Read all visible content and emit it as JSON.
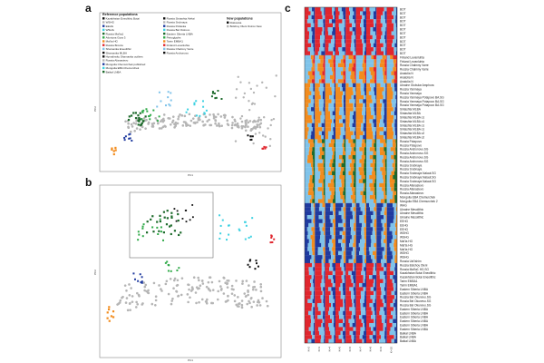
{
  "panels": {
    "a": "a",
    "b": "b",
    "c": "c"
  },
  "legend": {
    "ref_title": "Reference populations",
    "new_title": "New populations",
    "col1": [
      "Kazakhstan Eneolithic Botai",
      "WSHG",
      "EEHG",
      "WSHG",
      "Russia Mal'ta1",
      "Afontova Gora 3",
      "Mal'ta HG",
      "Russia Bronze",
      "Shamanka Eneolithic",
      "Shamanka MLBA",
      "Hymalinsky Shamanka outliers",
      "Russia Afanasievo",
      "Mongolia Chemurchek published",
      "Mongolia EBA Chemurchek",
      "Baikal LNBA"
    ],
    "col2": [
      "Russia Sintashta Aleksi",
      "Russia Srubnaya",
      "Russia Poltavka",
      "Russia Bel Ostrovo",
      "Eastern Siberia LNBA",
      "Petroglyphs",
      "Tarim EMBA1",
      "Finland Levanluhta",
      "Russia Chalmny Varre",
      "Russia Andronovo"
    ],
    "col3": [
      "Rotkonka",
      "Bolshoy Oleni Ostrov New"
    ]
  },
  "axes": {
    "pc1": "PC1",
    "pc2": "PC2"
  },
  "bar_labels": [
    "BOT",
    "BOT",
    "BOT",
    "BOT",
    "BOT",
    "BOT",
    "BOT",
    "BOT",
    "BOT",
    "BOT",
    "BOT",
    "BOT",
    "Finland Levanluhta",
    "Finland Levanluhta",
    "Russia Chalmny Varre",
    "Russia Chalmny Varre",
    "Anatolia N",
    "Anatolia N",
    "Anatolia N",
    "Ukraine Globular Amphora",
    "Russia Yamnaya",
    "Russia Yamnaya",
    "Russia Yamnaya Potapovo BA.SG",
    "Russia Yamnaya Potapovo BA.SG",
    "Russia Yamnaya Potapovo BA.SG",
    "Sintashta MLBA",
    "Sintashta MLBA",
    "Sintashta MLBA o1",
    "Sintashta MLBA o1",
    "Sintashta MLBA o1",
    "Sintashta MLBA o1",
    "Sintashta MLBA o2",
    "Sintashta MLBA o2",
    "Russia Potapovo",
    "Russia Potapovo",
    "Russia Andronovo.SG",
    "Russia Andronovo.SG",
    "Russia Andronovo.SG",
    "Russia Andronovo.SG",
    "Russia Srubnaya",
    "Russia Srubnaya",
    "Russia Srubnaya Nalaut.SG",
    "Russia Srubnaya Nalaut.SG",
    "Russia Srubnaya Nalaut.SG",
    "Russia Afanasievo",
    "Russia Afanasievo",
    "Russia Afanasievo",
    "Mongolia EBA Chemurchek",
    "Mongolia EBA Chemurchek 2",
    "WHG",
    "Ukraine Mesolithic",
    "Ukraine Mesolithic",
    "Ukraine Mesolithic",
    "EEHG",
    "EEHG",
    "EEHG",
    "WSHG",
    "WSHG",
    "Mal'ta HG",
    "Mal'ta HG",
    "Mal'ta HG",
    "WSHG",
    "WSHG",
    "Russia Ust'Ishim",
    "Russia Bolshoy Oleni",
    "Russia Mal'ta1 HG.SG",
    "Kazakhstan Botai Eneolithic",
    "Kazakhstan Botai Eneolithic",
    "Tarim EMBA1",
    "Tarim EMBA1",
    "Eastern Siberia LNBA",
    "Eastern Siberia LNBA",
    "Russia Bel Okunevo.SG",
    "Russia Bel Okunevo.SG",
    "Russia Bel Okunevo.SG",
    "Eastern Siberia LNBA",
    "Eastern Siberia LNBA",
    "Eastern Siberia LNBA",
    "Eastern Siberia LNBA",
    "Eastern Siberia LNBA",
    "Eastern Siberia LNBA",
    "Baikal LNBA",
    "Baikal LNBA",
    "Baikal LNBA"
  ],
  "bar_x_ticks": [
    "K=2",
    "K=3",
    "K=4",
    "K=5",
    "K=6",
    "K=7",
    "K=8",
    "K=9",
    "K=10"
  ],
  "colors": {
    "orange": "#f28c1e",
    "lightblue": "#7fc3ea",
    "navy": "#1f3a9f",
    "red": "#e0262e",
    "green": "#2faa48",
    "grey": "#b5b5b5",
    "cyan": "#3ed2e2",
    "darkgreen": "#1e6b2c",
    "white": "#f4f4f4",
    "black": "#111111"
  }
}
